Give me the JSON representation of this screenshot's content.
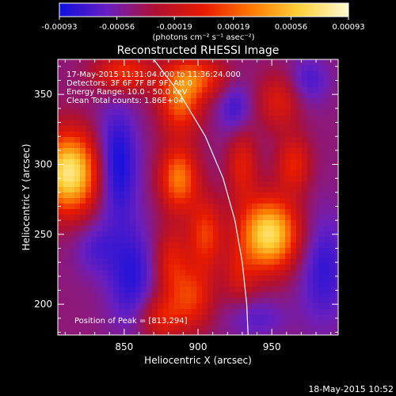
{
  "chart_data": {
    "type": "heatmap",
    "title": "Reconstructed RHESSI Image",
    "xlabel": "Heliocentric X (arcsec)",
    "ylabel": "Heliocentric Y (arcsec)",
    "xlim": [
      805,
      995
    ],
    "ylim": [
      178,
      375
    ],
    "x_ticks": [
      850,
      900,
      950
    ],
    "y_ticks": [
      200,
      250,
      300,
      350
    ],
    "colorbar": {
      "unit_label": "(photons cm⁻² s⁻¹ asec⁻²)",
      "range": [
        -0.00093,
        0.00093
      ],
      "tick_labels": [
        "-0.00093",
        "-0.00056",
        "-0.00019",
        "0.00019",
        "0.00056",
        "0.00093"
      ],
      "colors": [
        "#1010e0",
        "#6a1fbf",
        "#b01030",
        "#e81a00",
        "#ff7a00",
        "#ffd23a",
        "#fff8d0"
      ]
    },
    "annotations": [
      "17-May-2015 11:31:04.000 to 11:36:24.000",
      "Detectors: 3F 6F 7F 8F 9F, Att 0",
      "Energy Range: 10.0 - 50.0 keV",
      "Clean     Total counts: 1.86E+04"
    ],
    "peak_text": "Position of Peak = [813,294]",
    "date_stamp": "18-May-2015 10:52",
    "sources": [
      {
        "x": 813,
        "y": 294,
        "amp": 1.0,
        "sx": 14,
        "sy": 20
      },
      {
        "x": 948,
        "y": 250,
        "amp": 0.95,
        "sx": 14,
        "sy": 18
      },
      {
        "x": 887,
        "y": 290,
        "amp": 0.62,
        "sx": 9,
        "sy": 16
      },
      {
        "x": 888,
        "y": 345,
        "amp": 0.55,
        "sx": 10,
        "sy": 16
      },
      {
        "x": 850,
        "y": 365,
        "amp": 0.45,
        "sx": 14,
        "sy": 10
      },
      {
        "x": 900,
        "y": 362,
        "amp": 0.45,
        "sx": 14,
        "sy": 10
      },
      {
        "x": 905,
        "y": 250,
        "amp": 0.45,
        "sx": 8,
        "sy": 18
      },
      {
        "x": 882,
        "y": 230,
        "amp": 0.35,
        "sx": 8,
        "sy": 18
      },
      {
        "x": 896,
        "y": 205,
        "amp": 0.42,
        "sx": 10,
        "sy": 16
      },
      {
        "x": 875,
        "y": 190,
        "amp": 0.35,
        "sx": 10,
        "sy": 12
      },
      {
        "x": 965,
        "y": 300,
        "amp": 0.38,
        "sx": 8,
        "sy": 14
      },
      {
        "x": 955,
        "y": 345,
        "amp": 0.32,
        "sx": 10,
        "sy": 14
      },
      {
        "x": 930,
        "y": 300,
        "amp": 0.35,
        "sx": 7,
        "sy": 18
      },
      {
        "x": 928,
        "y": 220,
        "amp": 0.25,
        "sx": 8,
        "sy": 14
      },
      {
        "x": 845,
        "y": 300,
        "amp": -0.4,
        "sx": 10,
        "sy": 28
      },
      {
        "x": 855,
        "y": 220,
        "amp": -0.3,
        "sx": 12,
        "sy": 26
      },
      {
        "x": 985,
        "y": 225,
        "amp": -0.28,
        "sx": 12,
        "sy": 28
      },
      {
        "x": 925,
        "y": 340,
        "amp": -0.25,
        "sx": 8,
        "sy": 14
      },
      {
        "x": 975,
        "y": 360,
        "amp": -0.22,
        "sx": 10,
        "sy": 12
      },
      {
        "x": 940,
        "y": 190,
        "amp": -0.18,
        "sx": 14,
        "sy": 10
      },
      {
        "x": 830,
        "y": 240,
        "amp": -0.18,
        "sx": 10,
        "sy": 14
      }
    ],
    "limb_curve": [
      [
        870,
        375
      ],
      [
        888,
        350
      ],
      [
        905,
        320
      ],
      [
        917,
        290
      ],
      [
        925,
        260
      ],
      [
        930,
        230
      ],
      [
        933,
        200
      ],
      [
        934,
        178
      ]
    ]
  }
}
